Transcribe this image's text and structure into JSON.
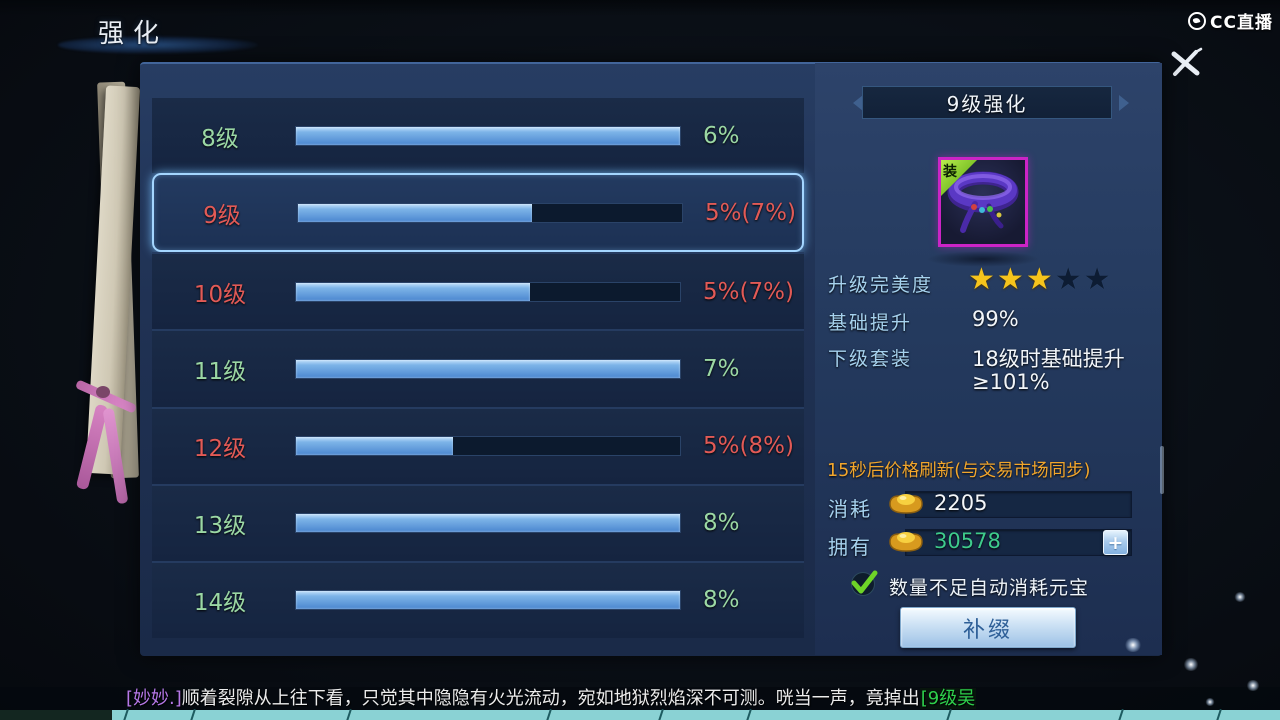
{
  "window": {
    "title": "强化",
    "watermark": "CC直播"
  },
  "enhance_list": {
    "rows": [
      {
        "level": "8级",
        "percent": "6%",
        "fill_pct": 100,
        "state": "green",
        "selected": false
      },
      {
        "level": "9级",
        "percent": "5%(7%)",
        "fill_pct": 61,
        "state": "red",
        "selected": true
      },
      {
        "level": "10级",
        "percent": "5%(7%)",
        "fill_pct": 61,
        "state": "red",
        "selected": false
      },
      {
        "level": "11级",
        "percent": "7%",
        "fill_pct": 100,
        "state": "green",
        "selected": false
      },
      {
        "level": "12级",
        "percent": "5%(8%)",
        "fill_pct": 41,
        "state": "red",
        "selected": false
      },
      {
        "level": "13级",
        "percent": "8%",
        "fill_pct": 100,
        "state": "green",
        "selected": false
      },
      {
        "level": "14级",
        "percent": "8%",
        "fill_pct": 100,
        "state": "green",
        "selected": false
      }
    ]
  },
  "detail": {
    "header": "9级强化",
    "item_badge": "装",
    "perfection": {
      "label": "升级完美度",
      "filled": 3,
      "total": 5
    },
    "base_bonus": {
      "label": "基础提升",
      "value": "99%"
    },
    "next_set": {
      "label": "下级套装",
      "value_line1": "18级时基础提升",
      "value_line2": "≥101%"
    },
    "refresh_notice": "15秒后价格刷新(与交易市场同步)",
    "cost": {
      "label": "消耗",
      "value": "2205"
    },
    "owned": {
      "label": "拥有",
      "value": "30578",
      "add_button": "+"
    },
    "auto_consume": {
      "checked": true,
      "label": "数量不足自动消耗元宝"
    },
    "action_button": "补缀"
  },
  "chat": {
    "sender": "[妙妙.]",
    "message": "顺着裂隙从上往下看，只觉其中隐隐有火光流动，宛如地狱烈焰深不可测。咣当一声，竟掉出",
    "item_link": "[9级吴"
  },
  "colors": {
    "green_text": "#9bd8a4",
    "red_text": "#e25a56",
    "orange_notice": "#f2a62c",
    "owned_green": "#3ecb8c",
    "chat_link_green": "#2ed04c",
    "bar_fill_blue": "#4a86cf",
    "selected_glow": "#a4d6ff",
    "item_border_magenta": "#cb24c6"
  }
}
